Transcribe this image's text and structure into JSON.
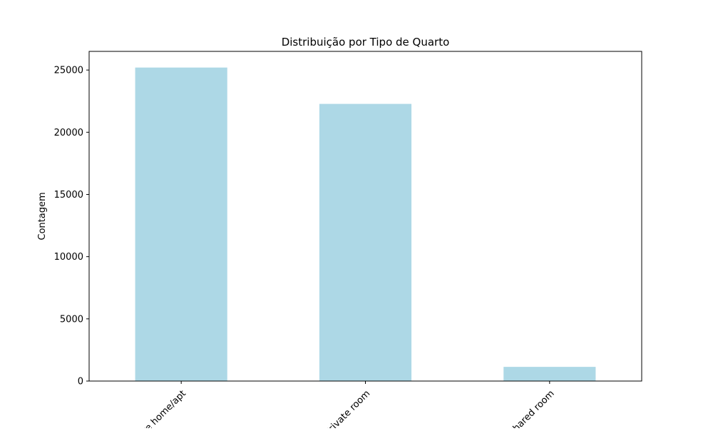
{
  "chart_data": {
    "type": "bar",
    "title": "Distribuição por Tipo de Quarto",
    "xlabel": "",
    "ylabel": "Contagem",
    "categories": [
      "Entire home/apt",
      "Private room",
      "Shared room"
    ],
    "values": [
      25200,
      22280,
      1140
    ],
    "ylim": [
      0,
      26500
    ],
    "yticks": [
      0,
      5000,
      10000,
      15000,
      20000,
      25000
    ],
    "ytick_labels": [
      "0",
      "5000",
      "10000",
      "15000",
      "20000",
      "25000"
    ],
    "xtick_rotation_deg": 45,
    "grid": false,
    "legend": "none",
    "colors": {
      "bar": "#add8e6",
      "axis": "#000000",
      "background": "#ffffff"
    }
  }
}
